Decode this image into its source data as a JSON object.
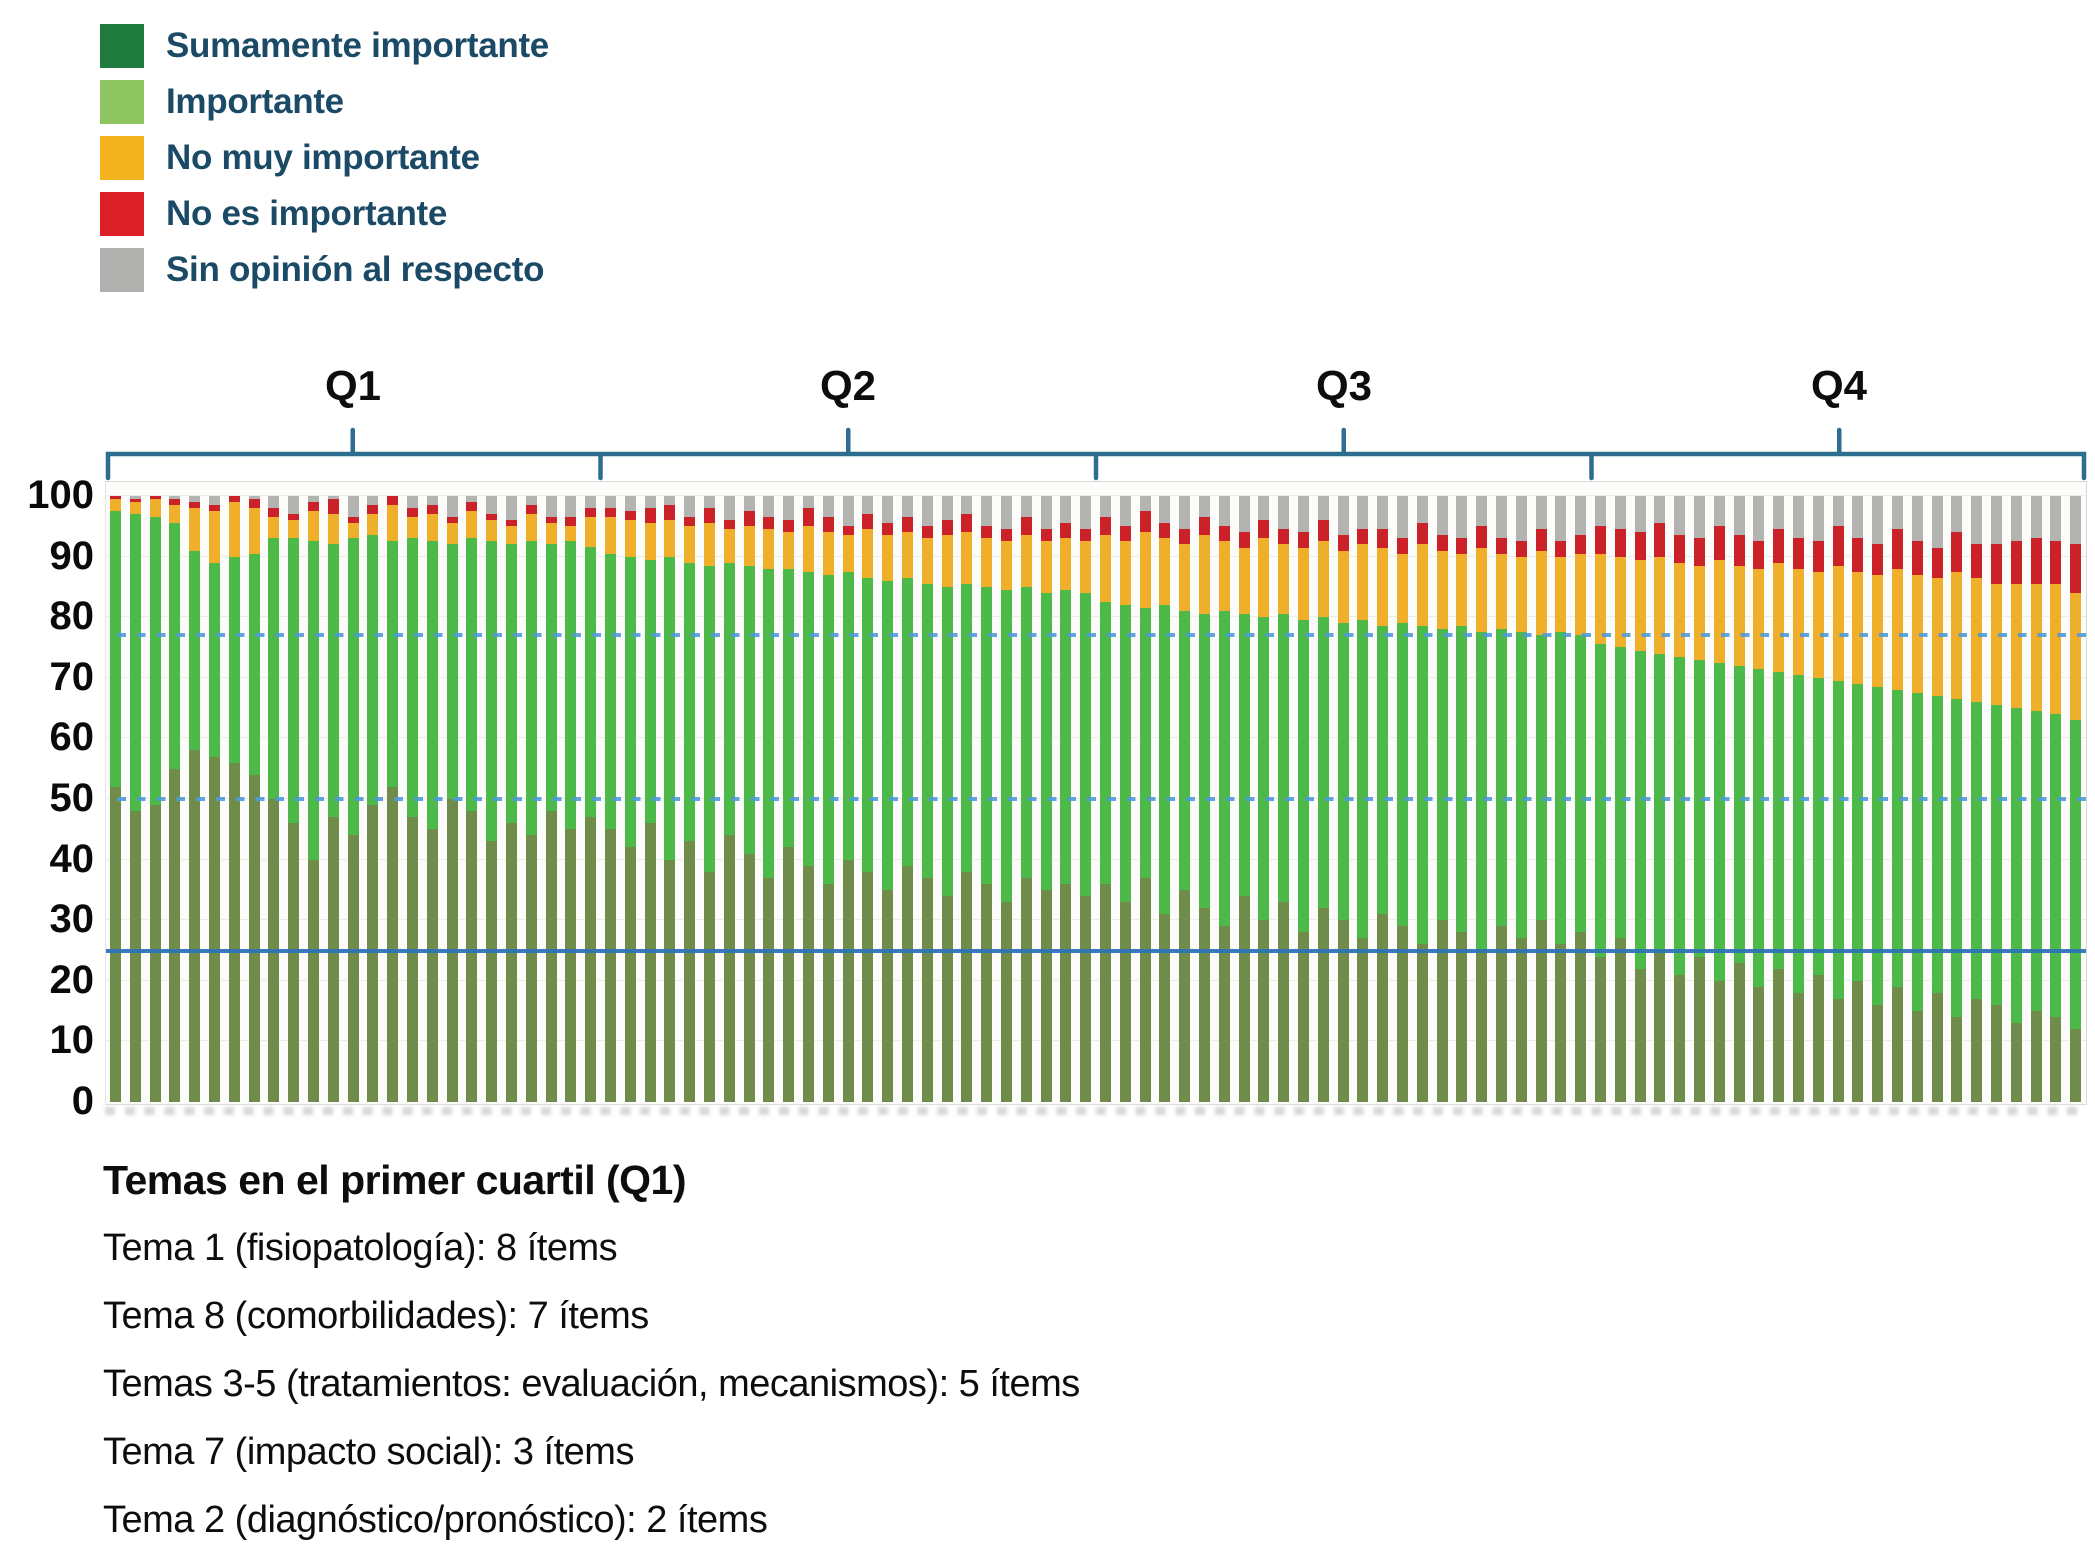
{
  "legend": {
    "items": [
      {
        "label": "Sumamente importante",
        "color": "#1f7c3e"
      },
      {
        "label": "Importante",
        "color": "#8ec561"
      },
      {
        "label": "No muy importante",
        "color": "#f2b31e"
      },
      {
        "label": "No es importante",
        "color": "#dc1f26"
      },
      {
        "label": "Sin opinión al respecto",
        "color": "#b0b0ae"
      }
    ]
  },
  "quartile_brackets": {
    "labels": [
      "Q1",
      "Q2",
      "Q3",
      "Q4"
    ],
    "color": "#2d6d8e"
  },
  "chart_data": {
    "type": "bar",
    "stacked": true,
    "ylim": [
      0,
      100
    ],
    "y_ticks": [
      0,
      10,
      20,
      30,
      40,
      50,
      60,
      70,
      80,
      90,
      100
    ],
    "grid": "faint horizontal every 10",
    "legend_position": "top-left",
    "n_items": 100,
    "items_per_quartile": 25,
    "series_names": [
      "Sumamente importante",
      "Importante",
      "No muy importante",
      "No es importante",
      "Sin opinión al respecto"
    ],
    "series_colors": [
      "#6f8c4b",
      "#4cb948",
      "#efaf2b",
      "#cb2129",
      "#b3b3b1"
    ],
    "reference_lines": [
      {
        "value": 77,
        "style": "dashed",
        "color": "#4f9bd8"
      },
      {
        "value": 50,
        "style": "dashed",
        "color": "#4f9bd8"
      },
      {
        "value": 25,
        "style": "solid",
        "color": "#2e73b6"
      }
    ],
    "bars": [
      [
        52,
        45.5,
        2,
        0.5,
        0
      ],
      [
        48,
        49,
        2,
        0.5,
        0.5
      ],
      [
        49,
        47.5,
        3,
        0.5,
        0
      ],
      [
        55,
        40.5,
        3,
        1,
        0.5
      ],
      [
        58,
        33,
        7,
        1,
        1
      ],
      [
        57,
        32,
        8.5,
        1,
        1.5
      ],
      [
        56,
        34,
        9,
        1,
        0
      ],
      [
        54,
        36.5,
        7.5,
        1.5,
        0.5
      ],
      [
        50,
        43,
        3.5,
        1.5,
        2
      ],
      [
        46,
        47,
        3,
        1,
        3
      ],
      [
        40,
        52.5,
        5,
        1.5,
        1
      ],
      [
        47,
        45,
        5,
        2.5,
        0.5
      ],
      [
        44,
        49,
        2.5,
        1,
        3.5
      ],
      [
        49,
        44.5,
        3.5,
        1.5,
        1.5
      ],
      [
        52,
        40.5,
        6,
        1.5,
        0
      ],
      [
        47,
        46,
        3.5,
        1.5,
        2
      ],
      [
        45,
        47.5,
        4.5,
        1.5,
        1.5
      ],
      [
        50,
        42,
        3.5,
        1,
        3.5
      ],
      [
        48,
        45,
        4.5,
        1.5,
        1
      ],
      [
        43,
        49.5,
        3.5,
        1,
        3
      ],
      [
        46,
        46,
        3,
        1,
        4
      ],
      [
        44,
        48.5,
        4.5,
        1.5,
        1.5
      ],
      [
        48,
        44,
        3.5,
        1,
        3.5
      ],
      [
        45,
        47.5,
        2.5,
        1.5,
        3.5
      ],
      [
        47,
        44.5,
        5,
        1.5,
        2
      ],
      [
        45,
        45.5,
        6,
        1.5,
        2
      ],
      [
        42,
        48,
        6,
        1.5,
        2.5
      ],
      [
        46,
        43.5,
        6,
        2.5,
        2
      ],
      [
        40,
        50,
        6,
        2.5,
        1.5
      ],
      [
        43,
        46,
        6,
        1.5,
        3.5
      ],
      [
        38,
        50.5,
        7,
        2.5,
        2
      ],
      [
        44,
        45,
        5.5,
        1.5,
        4
      ],
      [
        41,
        47.5,
        6.5,
        2.5,
        2.5
      ],
      [
        37,
        51,
        6.5,
        2,
        3.5
      ],
      [
        42,
        46,
        6,
        2,
        4
      ],
      [
        39,
        48.5,
        7.5,
        3,
        2
      ],
      [
        36,
        51,
        7,
        2.5,
        3.5
      ],
      [
        40,
        47.5,
        6,
        1.5,
        5
      ],
      [
        38,
        48.5,
        8,
        2.5,
        3
      ],
      [
        35,
        51,
        7.5,
        2,
        4.5
      ],
      [
        39,
        47.5,
        7.5,
        2.5,
        3.5
      ],
      [
        37,
        48.5,
        7.5,
        2,
        5
      ],
      [
        34,
        51,
        8.5,
        2.5,
        4
      ],
      [
        38,
        47.5,
        8.5,
        3,
        3
      ],
      [
        36,
        49,
        8,
        2,
        5
      ],
      [
        33,
        51.5,
        8,
        2,
        5.5
      ],
      [
        37,
        48,
        8.5,
        3,
        3.5
      ],
      [
        35,
        49,
        8.5,
        2,
        5.5
      ],
      [
        36,
        48.5,
        8.5,
        2.5,
        4.5
      ],
      [
        34,
        50,
        8.5,
        2,
        5.5
      ],
      [
        36,
        46.5,
        11,
        3,
        3.5
      ],
      [
        33,
        49,
        10.5,
        2.5,
        5
      ],
      [
        37,
        44.5,
        12.5,
        3.5,
        2.5
      ],
      [
        31,
        51,
        11,
        2.5,
        4.5
      ],
      [
        35,
        46,
        11,
        2.5,
        5.5
      ],
      [
        32,
        48.5,
        13,
        3,
        3.5
      ],
      [
        29,
        52,
        11.5,
        2.5,
        5
      ],
      [
        34,
        46.5,
        11,
        2.5,
        6
      ],
      [
        30,
        50,
        13,
        3,
        4
      ],
      [
        33,
        47.5,
        11.5,
        2.5,
        5.5
      ],
      [
        28,
        51.5,
        12,
        2.5,
        6
      ],
      [
        32,
        48,
        12.5,
        3.5,
        4
      ],
      [
        30,
        49,
        12,
        2.5,
        6.5
      ],
      [
        27,
        52.5,
        12.5,
        2.5,
        5.5
      ],
      [
        31,
        47.5,
        13,
        3,
        5.5
      ],
      [
        29,
        50,
        11.5,
        2.5,
        7
      ],
      [
        26,
        52.5,
        13.5,
        3.5,
        4.5
      ],
      [
        30,
        48,
        13,
        2.5,
        6.5
      ],
      [
        28,
        50.5,
        12,
        2.5,
        7
      ],
      [
        25,
        52.5,
        14,
        3.5,
        5
      ],
      [
        29,
        49,
        12.5,
        2.5,
        7
      ],
      [
        27,
        50.5,
        12.5,
        2.5,
        7.5
      ],
      [
        30,
        47,
        14,
        3.5,
        5.5
      ],
      [
        26,
        51.5,
        12.5,
        2.5,
        7.5
      ],
      [
        28,
        49,
        13.5,
        3,
        6.5
      ],
      [
        24,
        51.5,
        15,
        4.5,
        5
      ],
      [
        27,
        48,
        15,
        4.5,
        5.5
      ],
      [
        22,
        52.5,
        15,
        4.5,
        6
      ],
      [
        25,
        49,
        16,
        5.5,
        4.5
      ],
      [
        21,
        52.5,
        15.5,
        4.5,
        6.5
      ],
      [
        24,
        49,
        15.5,
        4.5,
        7
      ],
      [
        20,
        52.5,
        17,
        5.5,
        5
      ],
      [
        23,
        49,
        16.5,
        5,
        6.5
      ],
      [
        19,
        52.5,
        16.5,
        4.5,
        7.5
      ],
      [
        22,
        49,
        18,
        5.5,
        5.5
      ],
      [
        18,
        52.5,
        17.5,
        5,
        7
      ],
      [
        21,
        49,
        17.5,
        5,
        7.5
      ],
      [
        17,
        52.5,
        19,
        6.5,
        5
      ],
      [
        20,
        49,
        18.5,
        5.5,
        7
      ],
      [
        16,
        52.5,
        18.5,
        5,
        8
      ],
      [
        19,
        49,
        20,
        6.5,
        5.5
      ],
      [
        15,
        52.5,
        19.5,
        5.5,
        7.5
      ],
      [
        18,
        49,
        19.5,
        5,
        8.5
      ],
      [
        14,
        52.5,
        21,
        6.5,
        6
      ],
      [
        17,
        49,
        20.5,
        5.5,
        8
      ],
      [
        16,
        49.5,
        20,
        6.5,
        8
      ],
      [
        13,
        52,
        20.5,
        7,
        7.5
      ],
      [
        15,
        49.5,
        21,
        7.5,
        7
      ],
      [
        14,
        50,
        21.5,
        7,
        7.5
      ],
      [
        12,
        51,
        21,
        8,
        8
      ]
    ]
  },
  "footnote": {
    "title": "Temas en el primer cuartil (Q1)",
    "lines": [
      "Tema 1 (fisiopatología): 8 ítems",
      "Tema 8 (comorbilidades): 7 ítems",
      "Temas 3-5 (tratamientos: evaluación, mecanismos): 5 ítems",
      "Tema 7 (impacto social): 3 ítems",
      "Tema 2 (diagnóstico/pronóstico): 2 ítems"
    ]
  }
}
